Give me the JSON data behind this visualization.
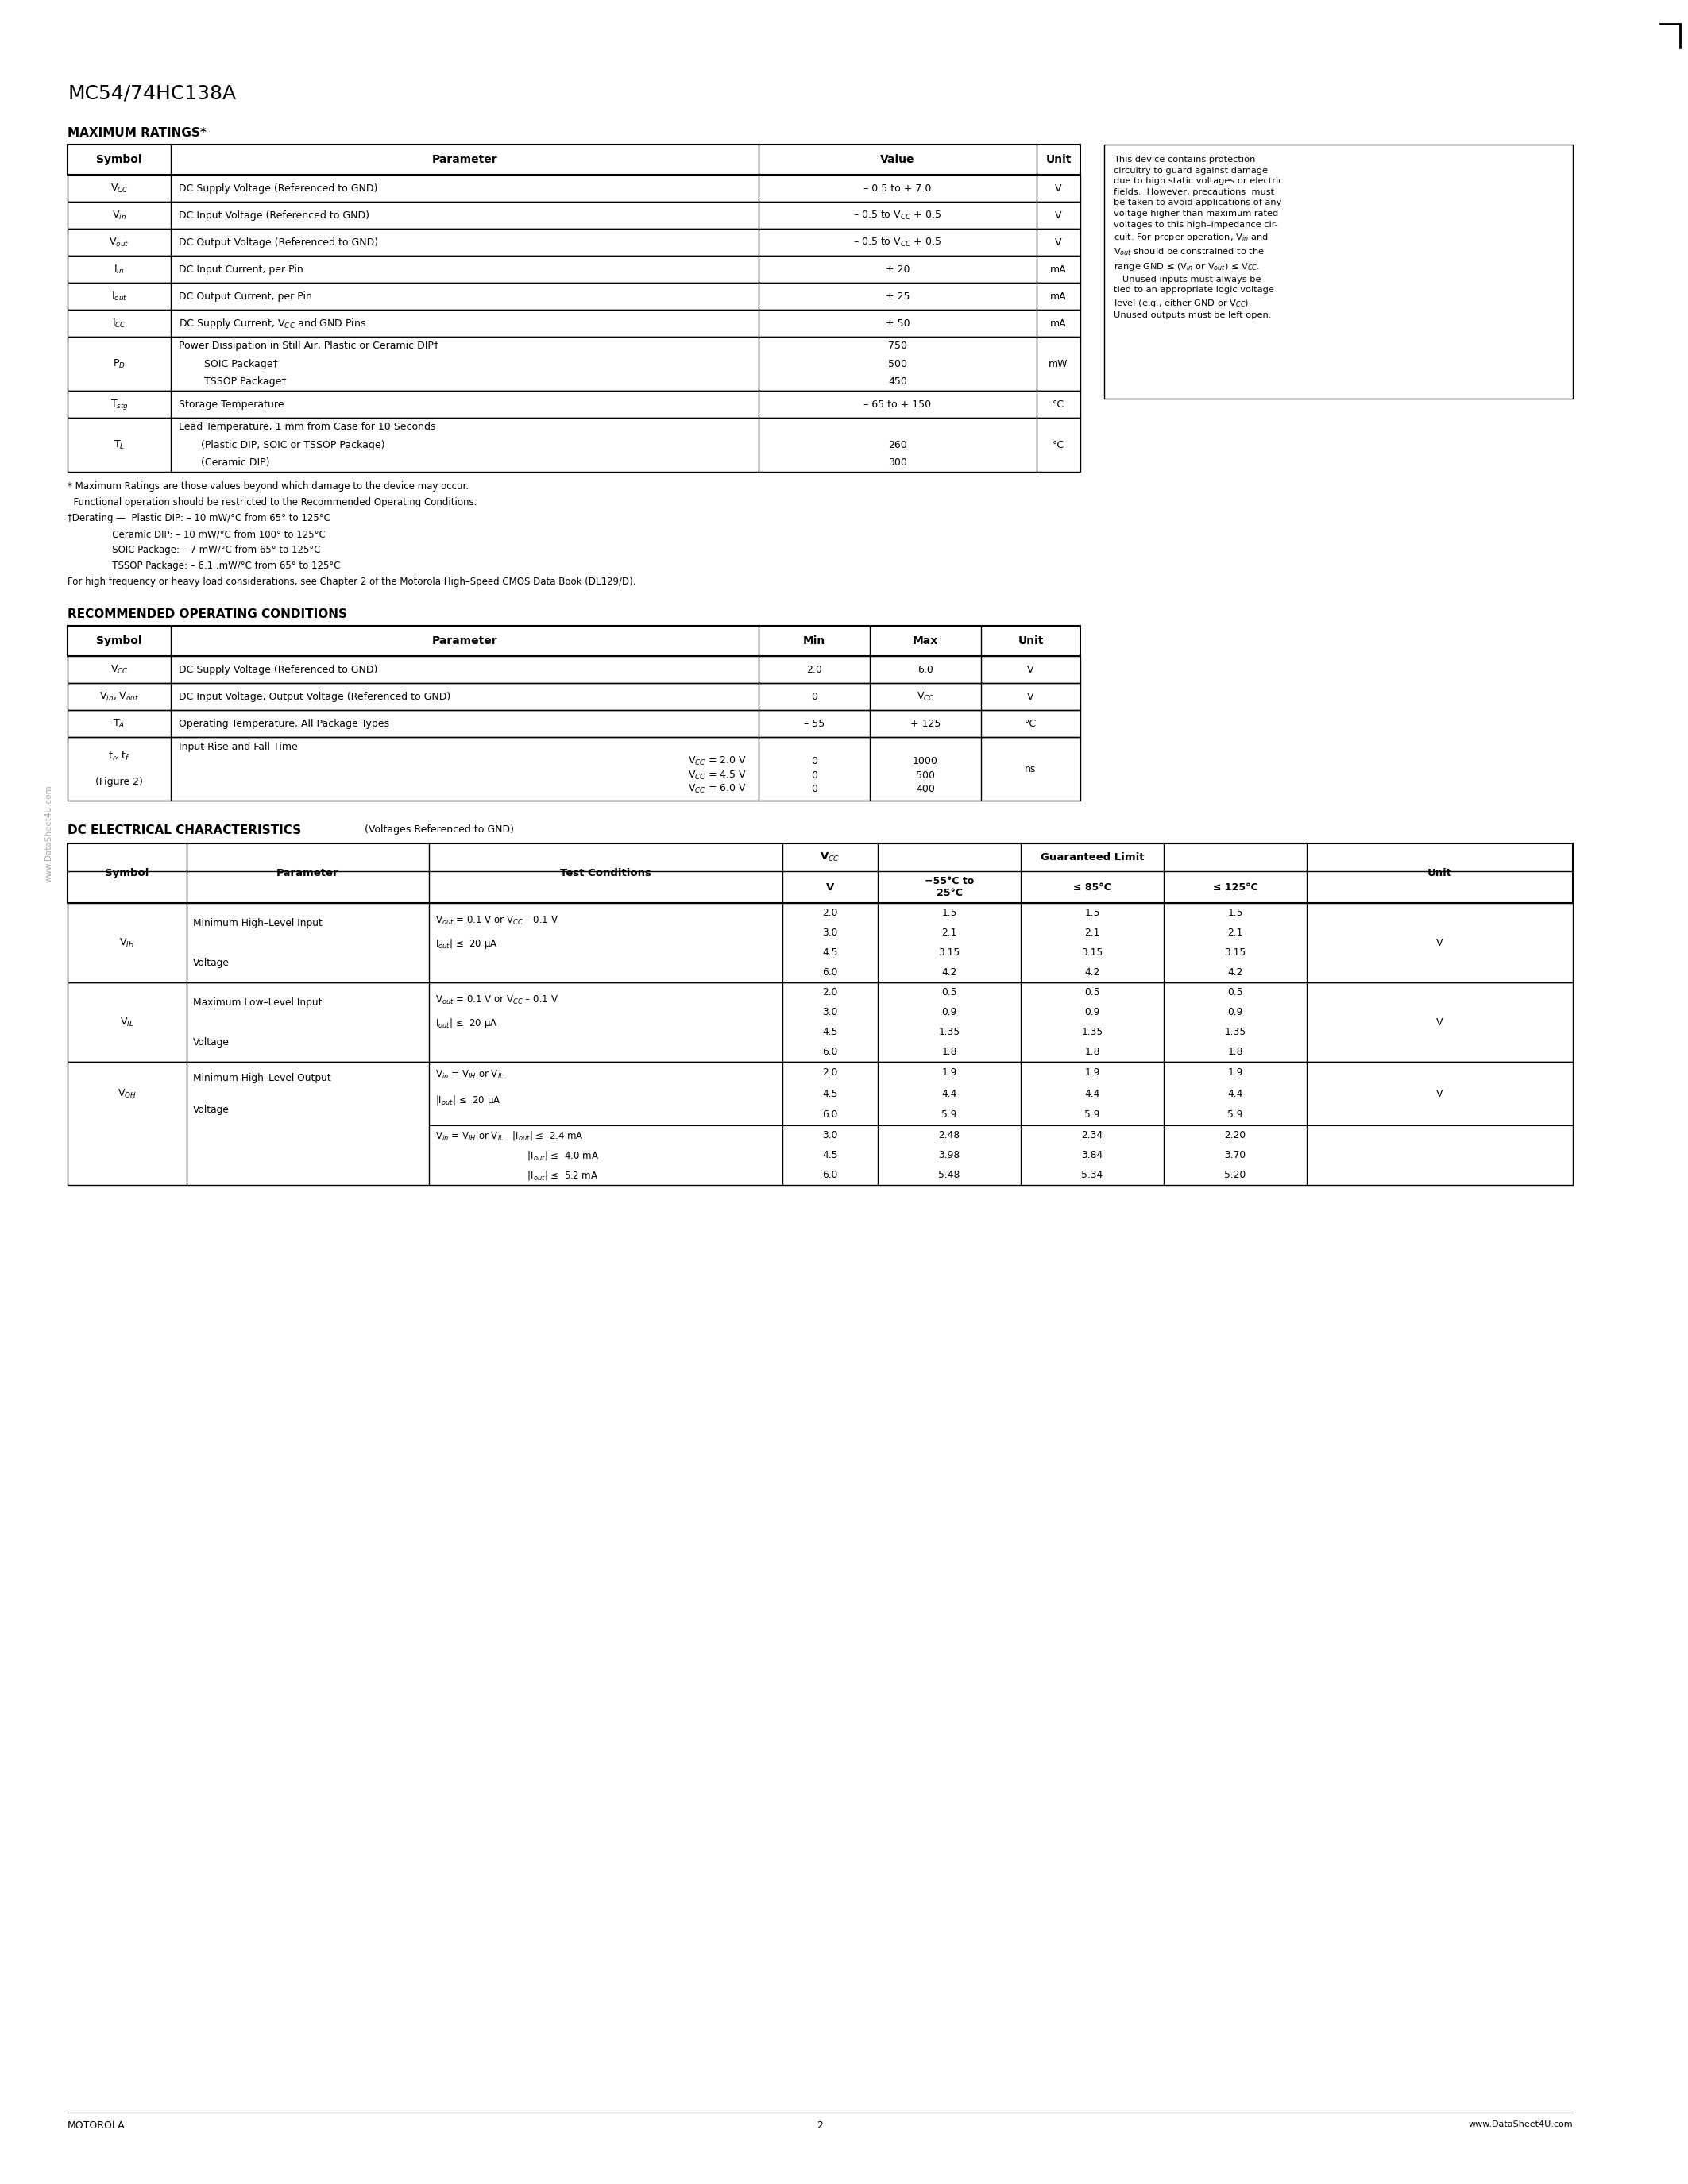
{
  "page_title": "MC54/74HC138A",
  "page_number": "2",
  "footer_left": "MOTOROLA",
  "footer_right": "www.DataSheet4U.com",
  "watermark": "www.DataSheet4U.com",
  "bg_color": "#ffffff",
  "max_ratings_title": "MAXIMUM RATINGS*",
  "rec_op_title": "RECOMMENDED OPERATING CONDITIONS",
  "dc_elec_title": "DC ELECTRICAL CHARACTERISTICS",
  "dc_elec_subtitle": " (Voltages Referenced to GND)"
}
